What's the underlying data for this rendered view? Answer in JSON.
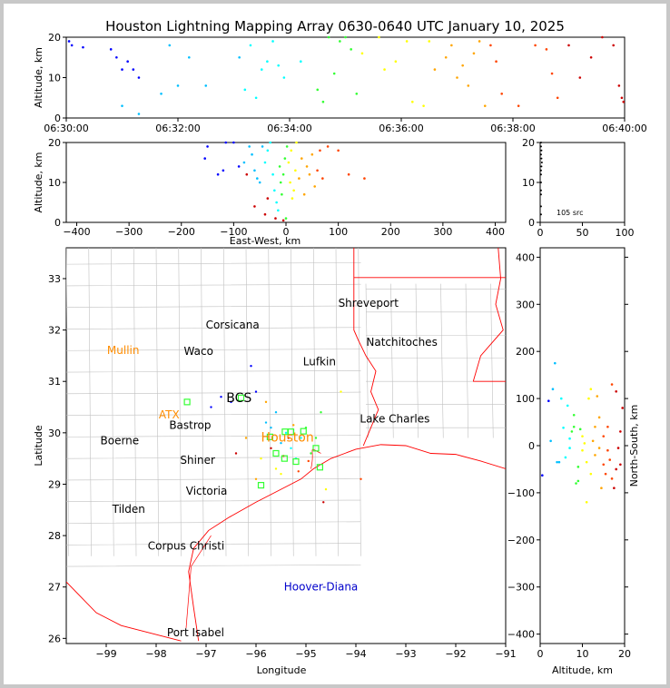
{
  "title": "Houston Lightning Mapping Array 0630-0640 UTC January 10, 2025",
  "colors": {
    "border": "#ff0000",
    "county": "#c0c0c0",
    "highlight": "#ff8c00",
    "hoover": "#0000cc",
    "station": "#33ff33"
  },
  "chart_data": [
    {
      "panel": "altitude-time",
      "type": "scatter",
      "ylabel": "Altitude, km",
      "xlim": [
        "06:30:00",
        "06:40:00"
      ],
      "ylim": [
        0,
        20
      ],
      "xticks": [
        "06:30:00",
        "06:32:00",
        "06:34:00",
        "06:36:00",
        "06:38:00",
        "06:40:00"
      ],
      "yticks": [
        "0",
        "10",
        "20"
      ],
      "points": [
        [
          0.05,
          19
        ],
        [
          0.1,
          18
        ],
        [
          0.3,
          17.5
        ],
        [
          0.8,
          17
        ],
        [
          0.9,
          15
        ],
        [
          1.0,
          12
        ],
        [
          1.1,
          14
        ],
        [
          1.2,
          12
        ],
        [
          1.3,
          10
        ],
        [
          1.0,
          3
        ],
        [
          1.3,
          1
        ],
        [
          1.7,
          6
        ],
        [
          1.85,
          18
        ],
        [
          2.0,
          8
        ],
        [
          2.2,
          15
        ],
        [
          2.5,
          8
        ],
        [
          3.1,
          15
        ],
        [
          3.2,
          7
        ],
        [
          3.3,
          18
        ],
        [
          3.4,
          5
        ],
        [
          3.5,
          12
        ],
        [
          3.6,
          14
        ],
        [
          3.7,
          19
        ],
        [
          3.8,
          13
        ],
        [
          3.9,
          10
        ],
        [
          4.2,
          14
        ],
        [
          4.5,
          7
        ],
        [
          4.6,
          4
        ],
        [
          4.7,
          20
        ],
        [
          4.8,
          11
        ],
        [
          4.9,
          19
        ],
        [
          5.0,
          20
        ],
        [
          5.1,
          17
        ],
        [
          5.2,
          6
        ],
        [
          5.3,
          16
        ],
        [
          5.6,
          20
        ],
        [
          5.7,
          12
        ],
        [
          5.9,
          14
        ],
        [
          6.1,
          19
        ],
        [
          6.2,
          4
        ],
        [
          6.4,
          3
        ],
        [
          6.5,
          19
        ],
        [
          6.6,
          12
        ],
        [
          6.8,
          15
        ],
        [
          6.9,
          18
        ],
        [
          7.0,
          10
        ],
        [
          7.1,
          13
        ],
        [
          7.2,
          8
        ],
        [
          7.3,
          16
        ],
        [
          7.4,
          19
        ],
        [
          7.5,
          3
        ],
        [
          7.6,
          18
        ],
        [
          7.7,
          14
        ],
        [
          7.8,
          6
        ],
        [
          8.1,
          3
        ],
        [
          8.4,
          18
        ],
        [
          8.6,
          17
        ],
        [
          8.7,
          11
        ],
        [
          8.8,
          5
        ],
        [
          9.0,
          18
        ],
        [
          9.2,
          10
        ],
        [
          9.4,
          15
        ],
        [
          9.6,
          20
        ],
        [
          9.8,
          18
        ],
        [
          9.9,
          8
        ],
        [
          9.95,
          5
        ],
        [
          9.98,
          4
        ]
      ]
    },
    {
      "panel": "altitude-eastwest",
      "type": "scatter",
      "xlabel": "East-West, km",
      "ylabel": "Altitude, km",
      "xlim": [
        -420,
        420
      ],
      "ylim": [
        0,
        20
      ],
      "xticks": [
        "−400",
        "−300",
        "−200",
        "−100",
        "0",
        "100",
        "200",
        "300",
        "400"
      ],
      "yticks": [
        "0",
        "10",
        "20"
      ],
      "points": [
        [
          -155,
          16
        ],
        [
          -150,
          19
        ],
        [
          -130,
          12
        ],
        [
          -120,
          13
        ],
        [
          -115,
          20
        ],
        [
          -100,
          20
        ],
        [
          -90,
          14
        ],
        [
          -80,
          15
        ],
        [
          -70,
          19
        ],
        [
          -65,
          17
        ],
        [
          -60,
          13
        ],
        [
          -55,
          11
        ],
        [
          -50,
          10
        ],
        [
          -45,
          19
        ],
        [
          -40,
          15
        ],
        [
          -35,
          18
        ],
        [
          -30,
          20
        ],
        [
          -25,
          12
        ],
        [
          -22,
          8
        ],
        [
          -18,
          5
        ],
        [
          -15,
          3
        ],
        [
          -12,
          14
        ],
        [
          -10,
          10
        ],
        [
          -8,
          7
        ],
        [
          -5,
          12
        ],
        [
          -2,
          16
        ],
        [
          0,
          1
        ],
        [
          2,
          19
        ],
        [
          5,
          15
        ],
        [
          8,
          10
        ],
        [
          10,
          18
        ],
        [
          12,
          6
        ],
        [
          15,
          8
        ],
        [
          18,
          13
        ],
        [
          20,
          20
        ],
        [
          25,
          11
        ],
        [
          30,
          16
        ],
        [
          35,
          7
        ],
        [
          40,
          14
        ],
        [
          45,
          12
        ],
        [
          50,
          17
        ],
        [
          55,
          9
        ],
        [
          60,
          13
        ],
        [
          65,
          18
        ],
        [
          70,
          11
        ],
        [
          80,
          19
        ],
        [
          100,
          18
        ],
        [
          120,
          12
        ],
        [
          150,
          11
        ],
        [
          -60,
          4
        ],
        [
          -40,
          2
        ],
        [
          -20,
          1
        ],
        [
          -5,
          0.5
        ],
        [
          -75,
          12
        ],
        [
          -35,
          6
        ]
      ]
    },
    {
      "panel": "altitude-histogram",
      "type": "scatter",
      "annotation": "105 src",
      "xlim": [
        0,
        100
      ],
      "ylim": [
        0,
        20
      ],
      "xticks": [
        "0",
        "50",
        "100"
      ],
      "yticks": [
        "0",
        "10",
        "20"
      ],
      "points": [
        [
          1,
          20
        ],
        [
          1,
          19
        ],
        [
          1.5,
          18
        ],
        [
          1,
          17
        ],
        [
          1.5,
          16
        ],
        [
          2,
          15
        ],
        [
          1.5,
          14
        ],
        [
          1,
          13
        ],
        [
          1,
          12
        ],
        [
          1,
          10
        ],
        [
          1,
          8
        ],
        [
          1,
          7
        ],
        [
          1,
          4
        ],
        [
          1,
          2
        ]
      ]
    },
    {
      "panel": "plan-view",
      "type": "map",
      "xlabel": "Longitude",
      "ylabel": "Latitude",
      "xlim": [
        -99.8,
        -91
      ],
      "ylim": [
        25.9,
        33.6
      ],
      "xticks": [
        "−99",
        "−98",
        "−97",
        "−96",
        "−95",
        "−94",
        "−93",
        "−92",
        "−91"
      ],
      "yticks": [
        "26",
        "27",
        "28",
        "29",
        "30",
        "31",
        "32",
        "33"
      ],
      "cities": [
        {
          "name": "Shreveport",
          "lon": -93.75,
          "lat": 32.52,
          "color": "#000000"
        },
        {
          "name": "Corsicana",
          "lon": -96.47,
          "lat": 32.1,
          "color": "#000000"
        },
        {
          "name": "Natchitoches",
          "lon": -93.08,
          "lat": 31.76,
          "color": "#000000"
        },
        {
          "name": "Mullin",
          "lon": -98.66,
          "lat": 31.6,
          "color": "#ff8c00"
        },
        {
          "name": "Waco",
          "lon": -97.15,
          "lat": 31.59,
          "color": "#000000"
        },
        {
          "name": "Lufkin",
          "lon": -94.73,
          "lat": 31.38,
          "color": "#000000"
        },
        {
          "name": "BCS",
          "lon": -96.34,
          "lat": 30.67,
          "color": "#000000"
        },
        {
          "name": "ATX",
          "lon": -97.74,
          "lat": 30.35,
          "color": "#ff8c00"
        },
        {
          "name": "Bastrop",
          "lon": -97.32,
          "lat": 30.15,
          "color": "#000000"
        },
        {
          "name": "Lake Charles",
          "lon": -93.22,
          "lat": 30.27,
          "color": "#000000"
        },
        {
          "name": "Boerne",
          "lon": -98.73,
          "lat": 29.85,
          "color": "#000000"
        },
        {
          "name": "Houston",
          "lon": -95.37,
          "lat": 29.9,
          "color": "#ff8c00"
        },
        {
          "name": "Shiner",
          "lon": -97.17,
          "lat": 29.47,
          "color": "#000000"
        },
        {
          "name": "Victoria",
          "lon": -96.99,
          "lat": 28.87,
          "color": "#000000"
        },
        {
          "name": "Tilden",
          "lon": -98.55,
          "lat": 28.51,
          "color": "#000000"
        },
        {
          "name": "Corpus Christi",
          "lon": -97.4,
          "lat": 27.8,
          "color": "#000000"
        },
        {
          "name": "Hoover-Diana",
          "lon": -94.7,
          "lat": 27.0,
          "color": "#0000cc"
        },
        {
          "name": "Port Isabel",
          "lon": -97.21,
          "lat": 26.11,
          "color": "#000000"
        }
      ],
      "stations": [
        [
          -97.38,
          30.6
        ],
        [
          -96.3,
          30.68
        ],
        [
          -95.72,
          29.92
        ],
        [
          -95.6,
          29.6
        ],
        [
          -95.43,
          29.5
        ],
        [
          -95.2,
          29.44
        ],
        [
          -95.3,
          30.02
        ],
        [
          -95.05,
          30.03
        ],
        [
          -94.8,
          29.7
        ],
        [
          -94.72,
          29.33
        ],
        [
          -95.9,
          28.98
        ],
        [
          -95.42,
          30.02
        ]
      ],
      "points": [
        [
          -96.9,
          30.5
        ],
        [
          -96.7,
          30.7
        ],
        [
          -96.5,
          30.6
        ],
        [
          -96.1,
          31.3
        ],
        [
          -96.0,
          30.8
        ],
        [
          -95.8,
          30.2
        ],
        [
          -95.7,
          30.1
        ],
        [
          -95.6,
          30.4
        ],
        [
          -95.5,
          29.8
        ],
        [
          -95.4,
          30.0
        ],
        [
          -95.3,
          29.7
        ],
        [
          -95.2,
          29.5
        ],
        [
          -95.1,
          29.9
        ],
        [
          -95.0,
          30.1
        ],
        [
          -94.9,
          29.6
        ],
        [
          -94.8,
          29.9
        ],
        [
          -94.7,
          30.4
        ],
        [
          -94.6,
          28.9
        ],
        [
          -94.3,
          30.8
        ],
        [
          -95.9,
          29.5
        ],
        [
          -95.6,
          29.3
        ],
        [
          -95.5,
          29.2
        ],
        [
          -96.0,
          29.1
        ],
        [
          -96.2,
          29.9
        ],
        [
          -95.8,
          30.6
        ],
        [
          -95.25,
          30.15
        ],
        [
          -95.45,
          29.55
        ],
        [
          -94.95,
          29.45
        ],
        [
          -95.15,
          29.25
        ],
        [
          -93.9,
          29.1
        ],
        [
          -94.65,
          28.65
        ],
        [
          -96.4,
          29.6
        ],
        [
          -95.7,
          29.7
        ],
        [
          -95.35,
          29.9
        ]
      ]
    },
    {
      "panel": "northsouth-altitude",
      "type": "scatter",
      "xlabel": "Altitude, km",
      "ylabel": "North-South, km",
      "xlim": [
        0,
        20
      ],
      "ylim": [
        -420,
        420
      ],
      "xticks": [
        "0",
        "10",
        "20"
      ],
      "yticks": [
        "−400",
        "−300",
        "−200",
        "−100",
        "0",
        "100",
        "200",
        "300",
        "400"
      ],
      "points": [
        [
          0.5,
          -63
        ],
        [
          2,
          95
        ],
        [
          2.5,
          10
        ],
        [
          3,
          120
        ],
        [
          3.5,
          175
        ],
        [
          4,
          -35
        ],
        [
          4.5,
          -35
        ],
        [
          5,
          100
        ],
        [
          5.5,
          38
        ],
        [
          6.5,
          85
        ],
        [
          7,
          15
        ],
        [
          7.5,
          30
        ],
        [
          8,
          40
        ],
        [
          8.5,
          -80
        ],
        [
          9,
          -45
        ],
        [
          9.5,
          35
        ],
        [
          10,
          20
        ],
        [
          10.5,
          5
        ],
        [
          11,
          -120
        ],
        [
          11.5,
          100
        ],
        [
          12,
          120
        ],
        [
          12.5,
          10
        ],
        [
          13,
          -20
        ],
        [
          13.5,
          105
        ],
        [
          14,
          -5
        ],
        [
          14.5,
          -90
        ],
        [
          15,
          -40
        ],
        [
          15.5,
          -60
        ],
        [
          16,
          40
        ],
        [
          16.5,
          -30
        ],
        [
          17,
          130
        ],
        [
          17.5,
          -90
        ],
        [
          18,
          115
        ],
        [
          18.5,
          -5
        ],
        [
          19,
          30
        ],
        [
          19.5,
          80
        ],
        [
          10,
          -10
        ],
        [
          12,
          -60
        ],
        [
          14,
          60
        ],
        [
          16,
          -10
        ],
        [
          18,
          -50
        ],
        [
          6,
          -25
        ],
        [
          8,
          65
        ],
        [
          11,
          -35
        ],
        [
          13,
          40
        ],
        [
          15,
          20
        ],
        [
          17,
          -70
        ],
        [
          19,
          -40
        ],
        [
          9,
          -75
        ],
        [
          7,
          -5
        ]
      ]
    }
  ]
}
